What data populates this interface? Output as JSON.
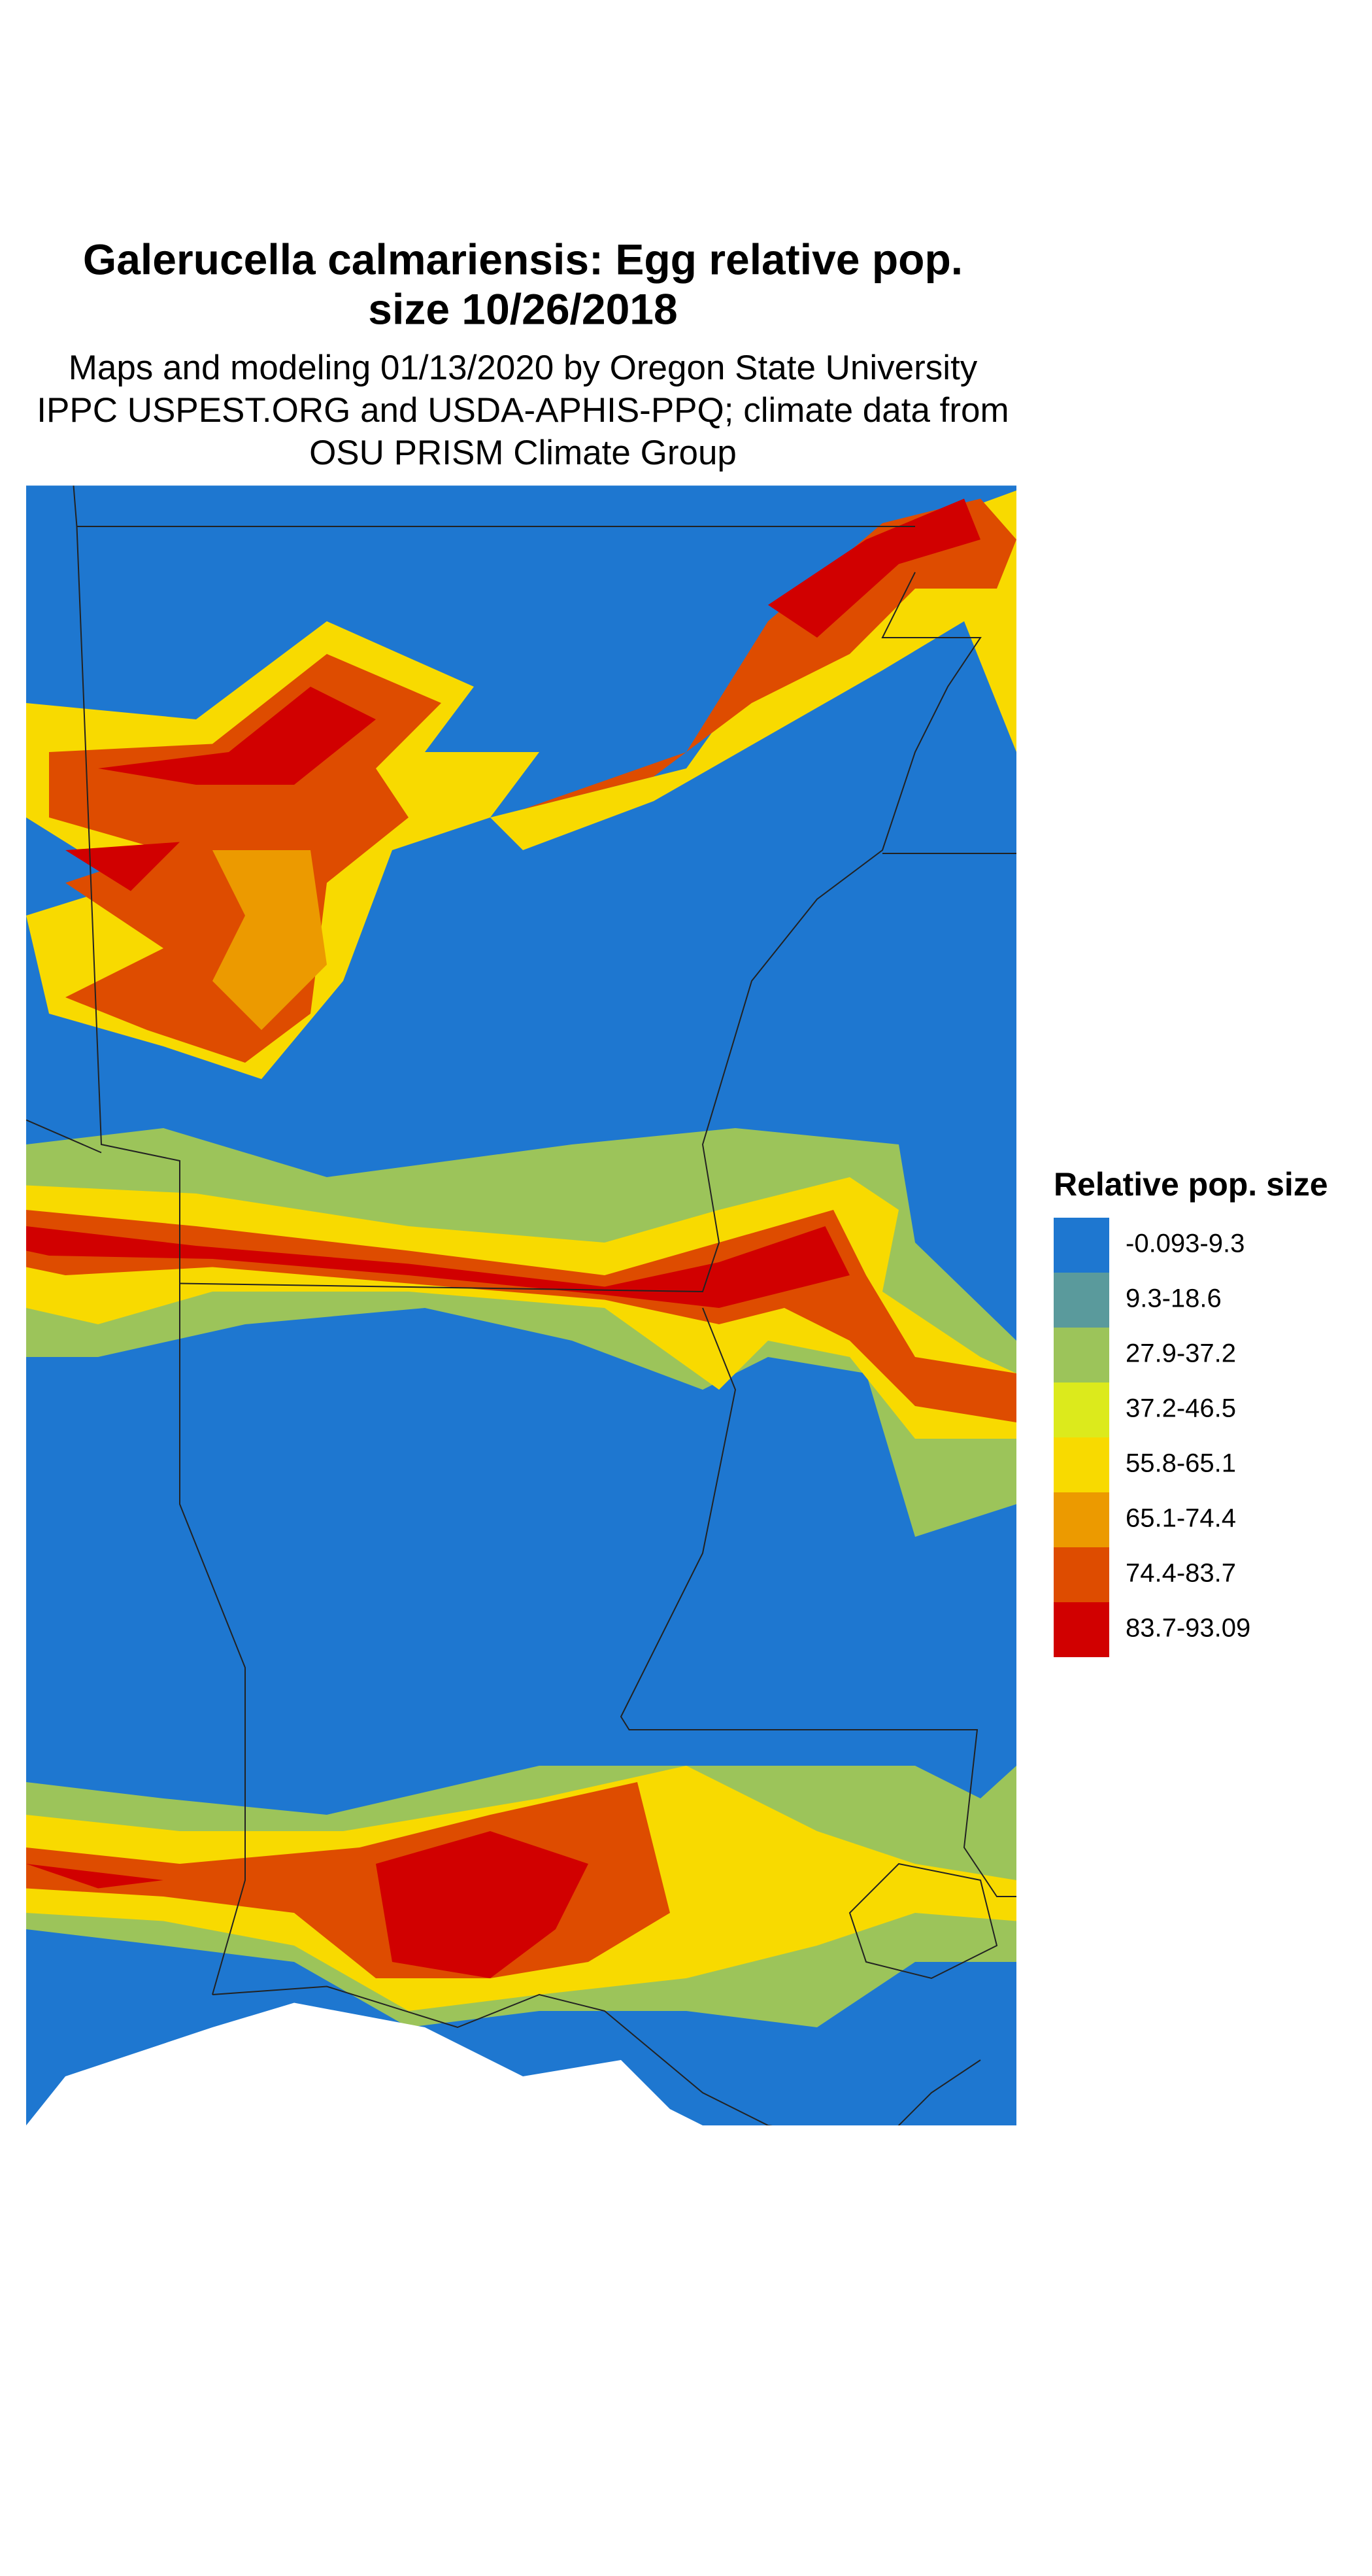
{
  "title": [
    "Galerucella calmariensis: Egg relative pop.",
    "size 10/26/2018"
  ],
  "subtitle": [
    "Maps and modeling 01/13/2020 by Oregon State University",
    "IPPC USPEST.ORG and USDA-APHIS-PPQ; climate data from",
    "OSU PRISM Climate Group"
  ],
  "legend": {
    "title": "Relative pop. size",
    "items": [
      {
        "label": "-0.093-9.3",
        "color": "#1e77d0"
      },
      {
        "label": "9.3-18.6",
        "color": "#5a9a9c"
      },
      {
        "label": "27.9-37.2",
        "color": "#9cc45a"
      },
      {
        "label": "37.2-46.5",
        "color": "#dcea1c"
      },
      {
        "label": "55.8-65.1",
        "color": "#f8da00"
      },
      {
        "label": "65.1-74.4",
        "color": "#ec9a00"
      },
      {
        "label": "74.4-83.7",
        "color": "#de4c00"
      },
      {
        "label": "83.7-93.09",
        "color": "#d10000"
      }
    ]
  }
}
